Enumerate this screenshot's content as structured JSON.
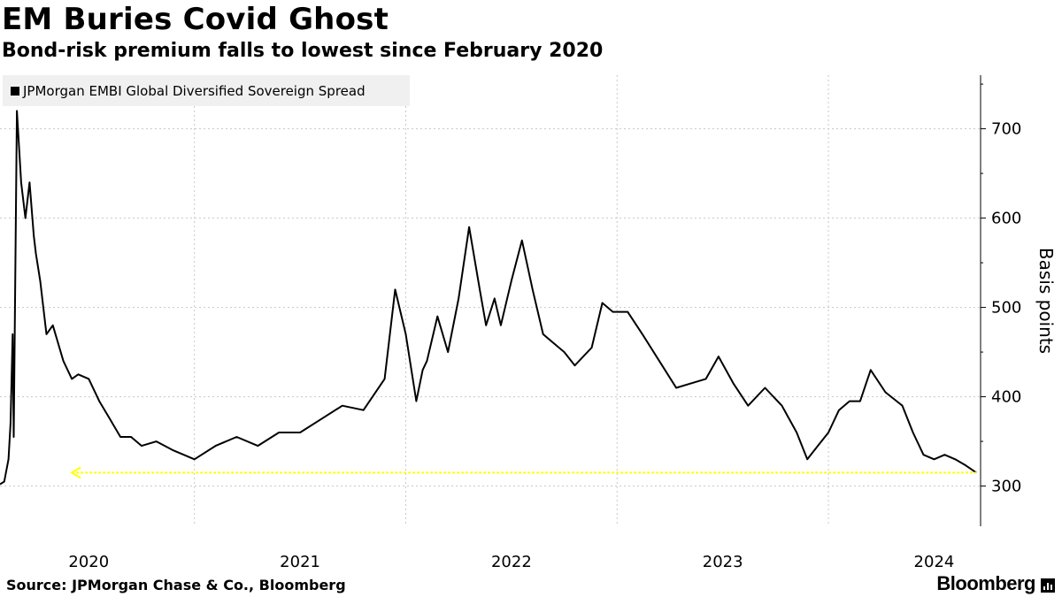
{
  "header": {
    "title": "EM Buries Covid Ghost",
    "subtitle": "Bond-risk premium falls to lowest since February 2020"
  },
  "footer": {
    "source": "Source: JPMorgan Chase & Co., Bloomberg",
    "brand": "Bloomberg"
  },
  "chart_data": {
    "type": "line",
    "title": "EM Buries Covid Ghost",
    "subtitle": "Bond-risk premium falls to lowest since February 2020",
    "xlabel": "",
    "ylabel": "Basis points",
    "ylim": [
      255,
      760
    ],
    "xlim": [
      2020.08,
      2024.72
    ],
    "y_ticks": [
      300,
      400,
      500,
      600,
      700
    ],
    "x_tick_labels": [
      "2020",
      "2021",
      "2022",
      "2023",
      "2024"
    ],
    "x_tick_positions": [
      2020.5,
      2021.5,
      2022.5,
      2023.5,
      2024.5
    ],
    "x_gridlines": [
      2021.0,
      2022.0,
      2023.0,
      2024.0
    ],
    "grid": "horizontal and vertical dotted",
    "legend_position": "top-left",
    "series": [
      {
        "name": "JPMorgan EMBI Global Diversified Sovereign Spread",
        "color": "#000000",
        "x": [
          2020.08,
          2020.1,
          2020.12,
          2020.13,
          2020.14,
          2020.145,
          2020.16,
          2020.18,
          2020.2,
          2020.22,
          2020.24,
          2020.25,
          2020.27,
          2020.3,
          2020.33,
          2020.38,
          2020.42,
          2020.45,
          2020.5,
          2020.55,
          2020.6,
          2020.65,
          2020.7,
          2020.75,
          2020.82,
          2020.9,
          2021.0,
          2021.1,
          2021.2,
          2021.3,
          2021.4,
          2021.5,
          2021.6,
          2021.7,
          2021.8,
          2021.9,
          2021.95,
          2022.0,
          2022.05,
          2022.08,
          2022.1,
          2022.15,
          2022.2,
          2022.25,
          2022.3,
          2022.35,
          2022.38,
          2022.42,
          2022.45,
          2022.5,
          2022.55,
          2022.6,
          2022.65,
          2022.7,
          2022.75,
          2022.8,
          2022.88,
          2022.93,
          2022.98,
          2023.05,
          2023.12,
          2023.2,
          2023.28,
          2023.35,
          2023.42,
          2023.48,
          2023.55,
          2023.62,
          2023.7,
          2023.78,
          2023.85,
          2023.9,
          2023.95,
          2024.0,
          2024.05,
          2024.1,
          2024.15,
          2024.2,
          2024.27,
          2024.35,
          2024.4,
          2024.45,
          2024.5,
          2024.55,
          2024.6,
          2024.65,
          2024.7
        ],
        "values": [
          302,
          305,
          330,
          370,
          470,
          355,
          720,
          640,
          600,
          640,
          580,
          560,
          530,
          470,
          480,
          440,
          420,
          425,
          420,
          395,
          375,
          355,
          355,
          345,
          350,
          340,
          330,
          345,
          355,
          345,
          360,
          360,
          375,
          390,
          385,
          420,
          520,
          470,
          395,
          430,
          440,
          490,
          450,
          510,
          590,
          520,
          480,
          510,
          480,
          530,
          575,
          520,
          470,
          460,
          450,
          435,
          455,
          505,
          495,
          495,
          470,
          440,
          410,
          415,
          420,
          445,
          415,
          390,
          410,
          390,
          360,
          330,
          345,
          360,
          385,
          395,
          395,
          430,
          405,
          390,
          360,
          335,
          330,
          335,
          330,
          323,
          315
        ],
        "min_reference_line": {
          "value": 315,
          "from_x": 2020.42,
          "to_x": 2024.7,
          "color": "#ffff00"
        }
      }
    ]
  }
}
